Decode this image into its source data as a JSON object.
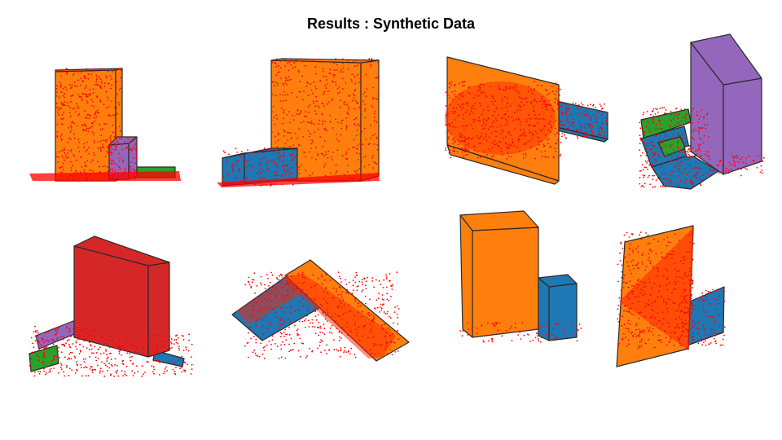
{
  "title": "Results : Synthetic Data",
  "colors": {
    "orange": "#ff7f0e",
    "blue": "#1f77b4",
    "green": "#2ca02c",
    "purple": "#9467bd",
    "red": "#d62728",
    "points": "#ff0000"
  },
  "panels": [
    {
      "name": "scene-1",
      "shapes": [
        "orange-box",
        "purple-box",
        "green-slab"
      ]
    },
    {
      "name": "scene-2",
      "shapes": [
        "orange-box",
        "blue-box"
      ]
    },
    {
      "name": "scene-3",
      "shapes": [
        "orange-slab",
        "blue-slab"
      ]
    },
    {
      "name": "scene-4",
      "shapes": [
        "purple-box",
        "green-blocks",
        "blue-blocks"
      ]
    },
    {
      "name": "scene-5",
      "shapes": [
        "red-box",
        "purple-slab",
        "green-slab"
      ]
    },
    {
      "name": "scene-6",
      "shapes": [
        "orange-slab",
        "blue-slab"
      ]
    },
    {
      "name": "scene-7",
      "shapes": [
        "orange-box",
        "blue-box"
      ]
    },
    {
      "name": "scene-8",
      "shapes": [
        "orange-plane",
        "blue-plane"
      ]
    }
  ]
}
